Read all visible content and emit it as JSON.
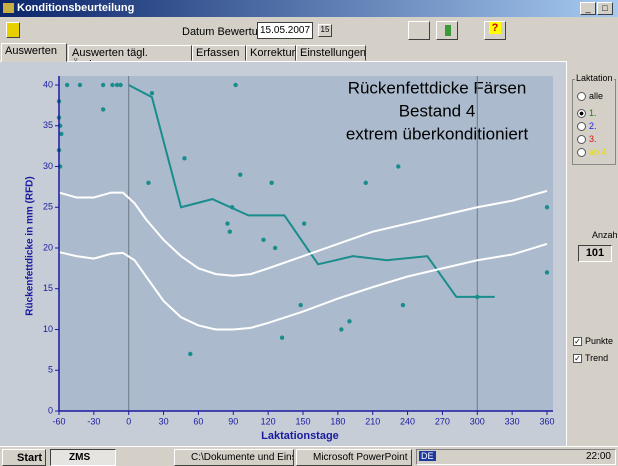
{
  "window": {
    "title": "Konditionsbeurteilung"
  },
  "toolbar": {
    "date_label": "Datum Bewertung",
    "date": "15.05.2007"
  },
  "tabs": [
    "Auswerten",
    "Auswerten tägl. Änderung",
    "Erfassen",
    "Korrektur",
    "Einstellungen"
  ],
  "chart_data": {
    "type": "scatter",
    "title_lines": [
      "Rückenfettdicke Färsen",
      "Bestand 4",
      "extrem überkonditioniert"
    ],
    "x_label": "Laktationstage",
    "y_label": "Rückenfettdicke in mm (RFD)",
    "xlim": [
      -60,
      360
    ],
    "ylim": [
      0,
      40
    ],
    "xticks": [
      -60,
      -30,
      0,
      30,
      60,
      90,
      120,
      150,
      180,
      210,
      240,
      270,
      300,
      330,
      360
    ],
    "yticks": [
      0,
      5,
      10,
      15,
      20,
      25,
      30,
      35,
      40
    ],
    "reference_lines": [
      0,
      300
    ],
    "series": [
      {
        "type": "scatter",
        "color": "#1b8c8c",
        "x": [
          -60,
          -60,
          -59,
          -58,
          -60,
          -59,
          -53,
          -42,
          -22,
          -14,
          -10,
          -7,
          -22,
          20,
          17,
          48,
          85,
          87,
          89,
          96,
          92,
          116,
          123,
          126,
          151,
          148,
          53,
          132,
          183,
          190,
          204,
          232,
          236,
          300,
          360,
          360
        ],
        "values": [
          38,
          36,
          35,
          34,
          32,
          30,
          40,
          40,
          40,
          40,
          40,
          40,
          37,
          39,
          28,
          31,
          23,
          22,
          25,
          29,
          40,
          21,
          28,
          20,
          23,
          13,
          7,
          9,
          10,
          11,
          28,
          30,
          13,
          14,
          25,
          17
        ]
      },
      {
        "type": "line",
        "color": "#1b8c8c",
        "width": 2,
        "x": [
          0,
          20,
          45,
          72,
          103,
          134,
          163,
          193,
          222,
          257,
          282,
          315
        ],
        "values": [
          40,
          38.5,
          25,
          26,
          24,
          24,
          18,
          19,
          18.5,
          19,
          14,
          14
        ]
      },
      {
        "type": "line",
        "color": "#ffffff",
        "width": 2,
        "x": [
          -60,
          -45,
          -30,
          -15,
          -5,
          5,
          15,
          30,
          45,
          60,
          75,
          90,
          105,
          120,
          150,
          180,
          210,
          240,
          270,
          300,
          330,
          360
        ],
        "values": [
          26.8,
          26.2,
          26.2,
          26.8,
          26.8,
          25.5,
          23.5,
          21,
          19,
          17.5,
          16.8,
          16.6,
          16.8,
          17.5,
          19,
          20.5,
          22,
          23,
          24,
          25,
          25.8,
          27
        ]
      },
      {
        "type": "line",
        "color": "#ffffff",
        "width": 2,
        "x": [
          -60,
          -45,
          -30,
          -15,
          -5,
          5,
          15,
          30,
          45,
          60,
          75,
          90,
          105,
          120,
          150,
          180,
          210,
          240,
          270,
          300,
          330,
          360
        ],
        "values": [
          19.5,
          19,
          18.7,
          19.3,
          19.4,
          18.5,
          16.5,
          13.5,
          11.5,
          10.5,
          10,
          10,
          10.2,
          10.8,
          12.2,
          13.8,
          15.2,
          16.5,
          17.5,
          18.5,
          19.2,
          20.5
        ]
      }
    ]
  },
  "side_panel": {
    "group": "Laktation",
    "options": [
      "alle",
      "1.",
      "2.",
      "3.",
      "ab 4"
    ],
    "count_label": "Anzahl",
    "count": 101,
    "checkboxes": [
      "Punkte",
      "Trend"
    ]
  },
  "taskbar": {
    "start": "Start",
    "items": [
      "ZMS",
      "C:\\Dokumente und Einst...",
      "Microsoft PowerPoint - [..."
    ],
    "lang": "DE",
    "clock": "22:00"
  }
}
